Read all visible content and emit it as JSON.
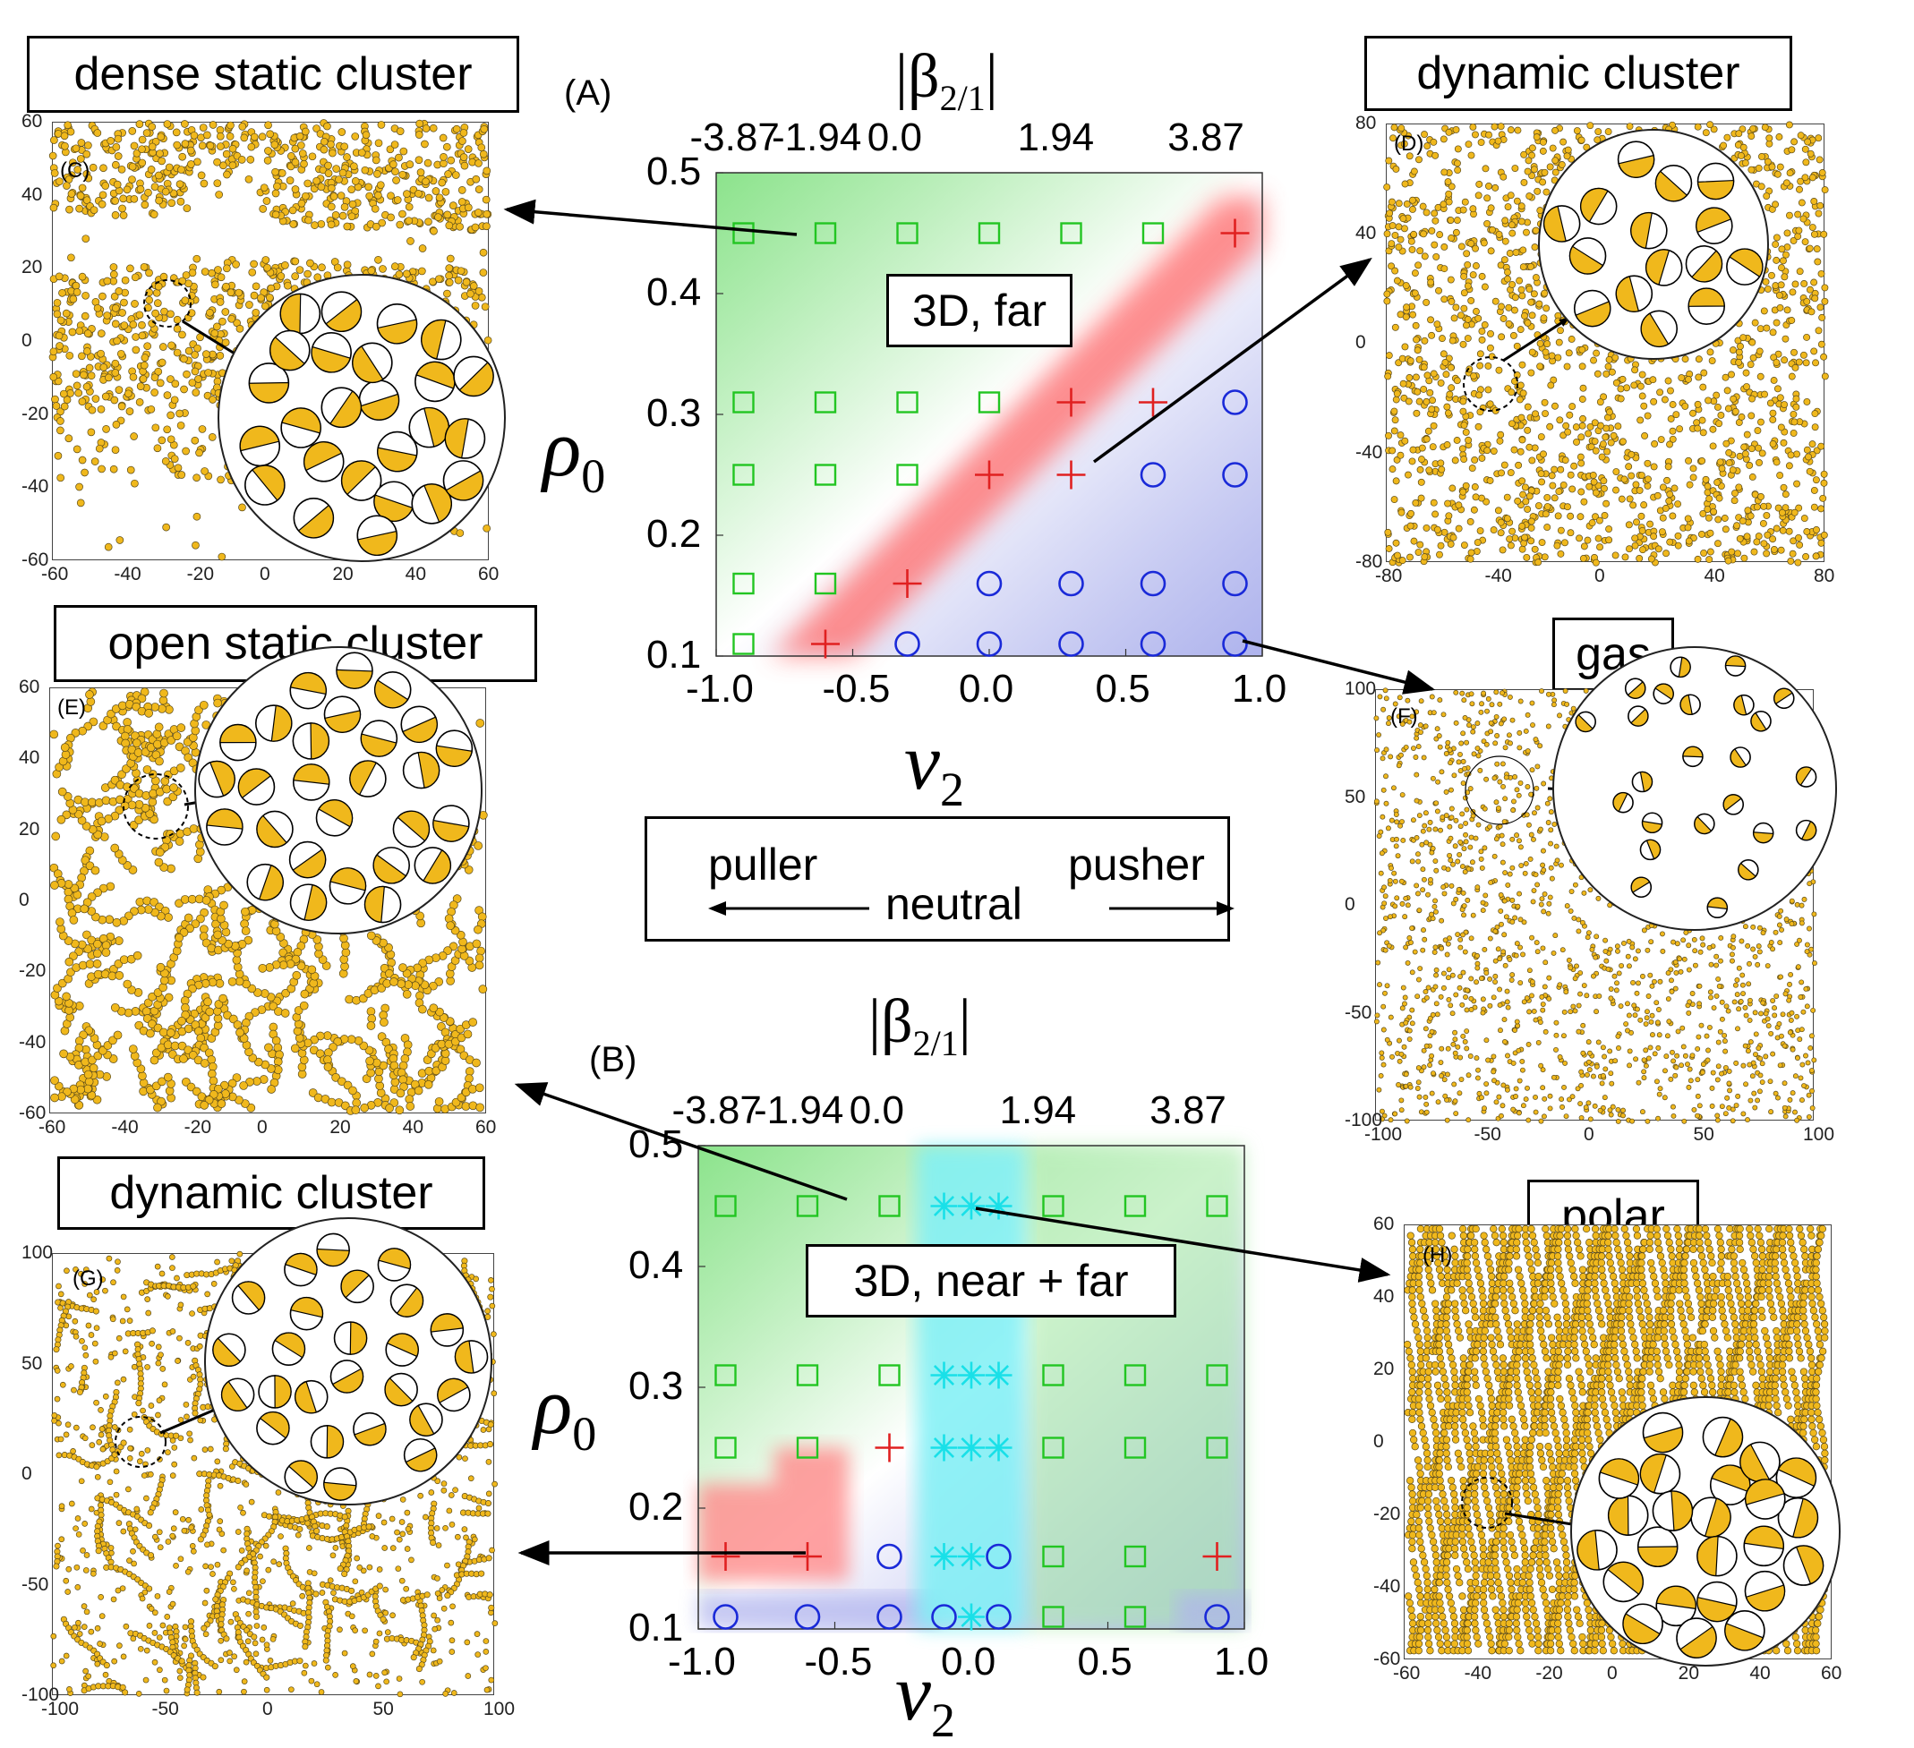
{
  "phase_diagrams": {
    "A": {
      "panel_label": "(A)",
      "region_label": "3D, far",
      "beta_label": "|β",
      "beta_sub": "2/1",
      "beta_close": "|",
      "top_ticks": [
        "-3.87",
        "-1.94",
        "0.0",
        "1.94",
        "3.87"
      ],
      "bottom_ticks": [
        "-1.0",
        "-0.5",
        "0.0",
        "0.5",
        "1.0"
      ],
      "left_ticks": [
        "0.1",
        "0.2",
        "0.3",
        "0.4",
        "0.5"
      ],
      "ylabel_symbol": "ρ",
      "ylabel_sub": "0",
      "xlabel_symbol": "v",
      "xlabel_sub": "2"
    },
    "B": {
      "panel_label": "(B)",
      "region_label": "3D, near + far",
      "beta_label": "|β",
      "beta_sub": "2/1",
      "beta_close": "|",
      "top_ticks": [
        "-3.87",
        "-1.94",
        "0.0",
        "1.94",
        "3.87"
      ],
      "bottom_ticks": [
        "-1.0",
        "-0.5",
        "0.0",
        "0.5",
        "1.0"
      ],
      "left_ticks": [
        "0.1",
        "0.2",
        "0.3",
        "0.4",
        "0.5"
      ],
      "ylabel_symbol": "ρ",
      "ylabel_sub": "0",
      "xlabel_symbol": "v",
      "xlabel_sub": "2"
    }
  },
  "legend_box": {
    "puller": "puller",
    "neutral": "neutral",
    "pusher": "pusher"
  },
  "snapshots": {
    "C": {
      "title": "dense static cluster",
      "tag": "(C)",
      "x_ticks": [
        "-60",
        "-40",
        "-20",
        "0",
        "20",
        "40",
        "60"
      ],
      "y_ticks": [
        "60",
        "40",
        "20",
        "0",
        "-20",
        "-40",
        "-60"
      ]
    },
    "D": {
      "title": "dynamic cluster",
      "tag": "(D)",
      "x_ticks": [
        "-80",
        "-40",
        "0",
        "40",
        "80"
      ],
      "y_ticks": [
        "80",
        "40",
        "0",
        "-40",
        "-80"
      ]
    },
    "E": {
      "title": "open static cluster",
      "tag": "(E)",
      "x_ticks": [
        "-60",
        "-40",
        "-20",
        "0",
        "20",
        "40",
        "60"
      ],
      "y_ticks": [
        "60",
        "40",
        "20",
        "0",
        "-20",
        "-40",
        "-60"
      ]
    },
    "F": {
      "title": "gas",
      "tag": "(F)",
      "x_ticks": [
        "-100",
        "-50",
        "0",
        "50",
        "100"
      ],
      "y_ticks": [
        "100",
        "50",
        "0",
        "-50",
        "-100"
      ]
    },
    "G": {
      "title": "dynamic cluster",
      "tag": "(G)",
      "x_ticks": [
        "-100",
        "-50",
        "0",
        "50",
        "100"
      ],
      "y_ticks": [
        "100",
        "50",
        "0",
        "-50",
        "-100"
      ]
    },
    "H": {
      "title": "polar",
      "tag": "(H)",
      "x_ticks": [
        "-60",
        "-40",
        "-20",
        "0",
        "20",
        "40",
        "60"
      ],
      "y_ticks": [
        "60",
        "40",
        "20",
        "0",
        "-20",
        "-40",
        "-60"
      ]
    }
  },
  "colors": {
    "dense_static_marker": "#22c522",
    "dynamic_cluster_marker": "#e02020",
    "gas_marker": "#1a2ad8",
    "polar_marker": "#19e0e8",
    "particle_fill": "#f0b81c"
  },
  "markers_A": {
    "v2": [
      -0.9,
      -0.6,
      -0.3,
      0.0,
      0.3,
      0.6,
      0.9
    ],
    "rho": [
      0.45,
      0.31,
      0.25,
      0.16,
      0.11
    ],
    "grid": [
      [
        "square",
        "square",
        "square",
        "square",
        "square",
        "square",
        "plus"
      ],
      [
        "square",
        "square",
        "square",
        "square",
        "plus",
        "plus",
        "circle"
      ],
      [
        "square",
        "square",
        "square",
        "plus",
        "plus",
        "circle",
        "circle"
      ],
      [
        "square",
        "square",
        "plus",
        "circle",
        "circle",
        "circle",
        "circle"
      ],
      [
        "square",
        "plus",
        "circle",
        "circle",
        "circle",
        "circle",
        "circle"
      ]
    ]
  },
  "markers_B": {
    "v2": [
      -0.9,
      -0.6,
      -0.3,
      -0.1,
      0.0,
      0.1,
      0.3,
      0.6,
      0.9
    ],
    "rho": [
      0.45,
      0.31,
      0.25,
      0.16,
      0.11
    ],
    "grid": [
      [
        "square",
        "square",
        "square",
        "star",
        "star",
        "star",
        "square",
        "square",
        "square"
      ],
      [
        "square",
        "square",
        "square",
        "star",
        "star",
        "star",
        "square",
        "square",
        "square"
      ],
      [
        "square",
        "square",
        "plus",
        "star",
        "star",
        "star",
        "square",
        "square",
        "square"
      ],
      [
        "plus",
        "plus",
        "circle",
        "star",
        "star",
        "circle",
        "square",
        "square",
        "plus"
      ],
      [
        "circle",
        "circle",
        "circle",
        "circle",
        "star",
        "circle",
        "square",
        "square",
        "circle"
      ]
    ]
  }
}
